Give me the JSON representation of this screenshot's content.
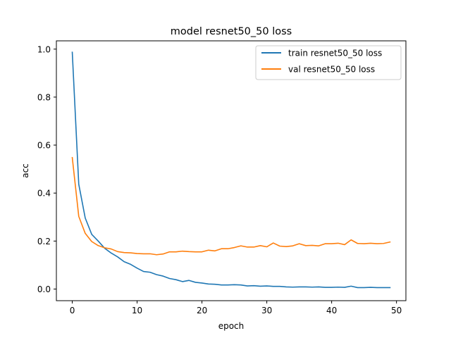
{
  "chart_data": {
    "type": "line",
    "title": "model resnet50_50 loss",
    "xlabel": "epoch",
    "ylabel": "acc",
    "xlim": [
      -2.45,
      51.45
    ],
    "ylim": [
      -0.0485,
      1.0345
    ],
    "xticks": [
      0,
      10,
      20,
      30,
      40,
      50
    ],
    "yticks": [
      0.0,
      0.2,
      0.4,
      0.6,
      0.8,
      1.0
    ],
    "xtick_labels": [
      "0",
      "10",
      "20",
      "30",
      "40",
      "50"
    ],
    "ytick_labels": [
      "0.0",
      "0.2",
      "0.4",
      "0.6",
      "0.8",
      "1.0"
    ],
    "grid": false,
    "legend_position": "top-right",
    "x": [
      0,
      1,
      2,
      3,
      4,
      5,
      6,
      7,
      8,
      9,
      10,
      11,
      12,
      13,
      14,
      15,
      16,
      17,
      18,
      19,
      20,
      21,
      22,
      23,
      24,
      25,
      26,
      27,
      28,
      29,
      30,
      31,
      32,
      33,
      34,
      35,
      36,
      37,
      38,
      39,
      40,
      41,
      42,
      43,
      44,
      45,
      46,
      47,
      48,
      49
    ],
    "series": [
      {
        "name": "train resnet50_50 loss",
        "color": "#1f77b4",
        "values": [
          0.987,
          0.437,
          0.296,
          0.228,
          0.2,
          0.17,
          0.15,
          0.134,
          0.114,
          0.103,
          0.087,
          0.073,
          0.07,
          0.06,
          0.054,
          0.044,
          0.039,
          0.031,
          0.036,
          0.028,
          0.025,
          0.021,
          0.02,
          0.017,
          0.017,
          0.018,
          0.017,
          0.013,
          0.014,
          0.012,
          0.013,
          0.011,
          0.011,
          0.009,
          0.008,
          0.009,
          0.009,
          0.008,
          0.009,
          0.007,
          0.007,
          0.008,
          0.007,
          0.012,
          0.006,
          0.006,
          0.007,
          0.006,
          0.006,
          0.006
        ]
      },
      {
        "name": "val resnet50_50 loss",
        "color": "#ff7f0e",
        "values": [
          0.548,
          0.303,
          0.232,
          0.198,
          0.181,
          0.172,
          0.167,
          0.156,
          0.152,
          0.151,
          0.148,
          0.147,
          0.147,
          0.143,
          0.146,
          0.155,
          0.155,
          0.158,
          0.156,
          0.155,
          0.155,
          0.162,
          0.159,
          0.168,
          0.168,
          0.173,
          0.18,
          0.175,
          0.175,
          0.181,
          0.176,
          0.192,
          0.179,
          0.177,
          0.18,
          0.189,
          0.181,
          0.182,
          0.18,
          0.189,
          0.189,
          0.191,
          0.185,
          0.205,
          0.19,
          0.189,
          0.191,
          0.189,
          0.19,
          0.196
        ]
      }
    ]
  }
}
